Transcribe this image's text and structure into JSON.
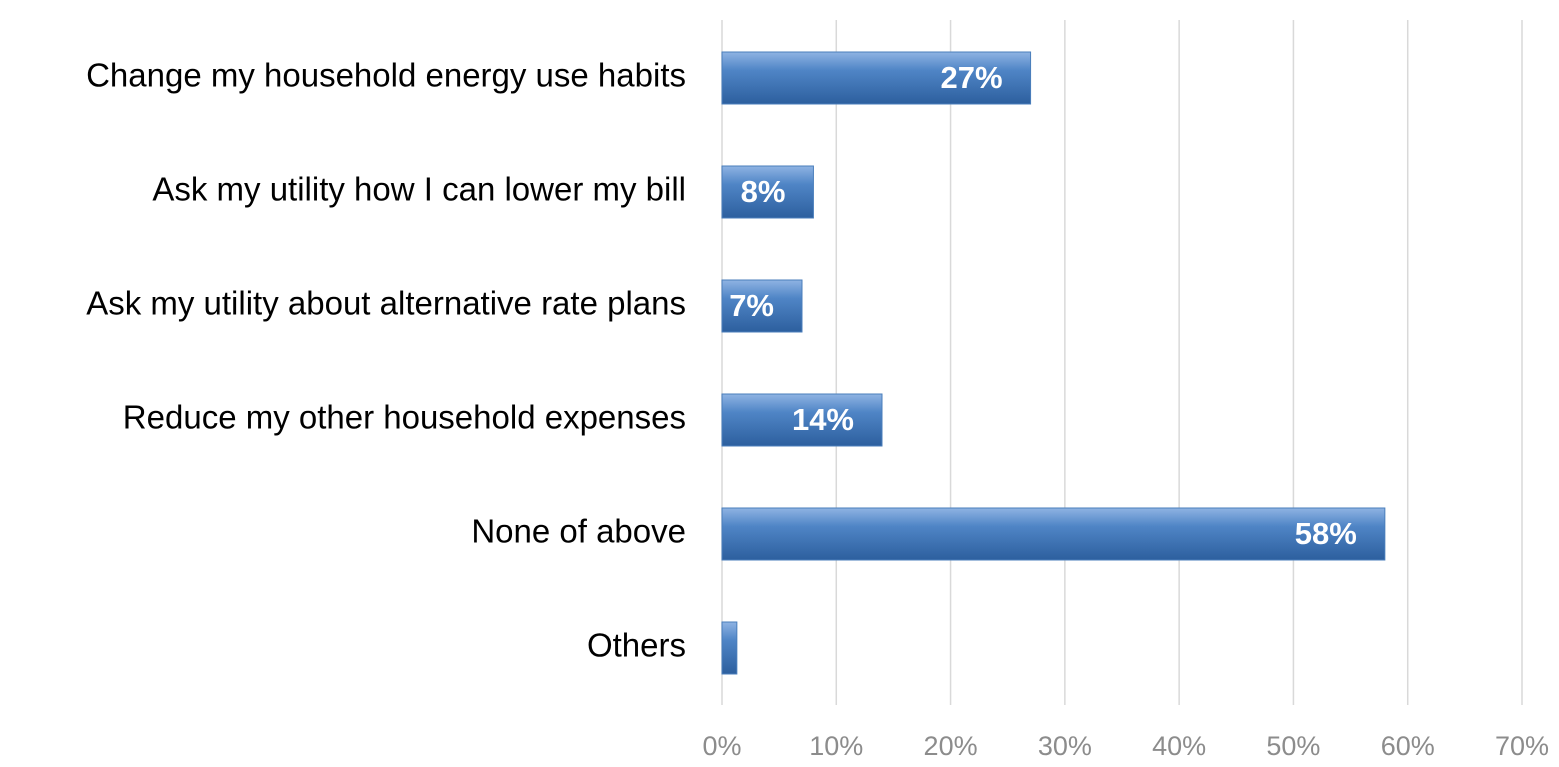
{
  "chart_data": {
    "type": "hbar",
    "categories": [
      "Change my household energy use habits",
      "Ask my utility how I can lower my bill",
      "Ask my utility about alternative rate plans",
      "Reduce my other household expenses",
      "None of above",
      "Others"
    ],
    "values": [
      27,
      8,
      7,
      14,
      58,
      1.3
    ],
    "value_labels": [
      "27%",
      "8%",
      "7%",
      "14%",
      "58%",
      null
    ],
    "color": "#4a7ebb",
    "xlim": [
      0,
      70
    ],
    "xticks": [
      {
        "value": 0,
        "label": "0%"
      },
      {
        "value": 10,
        "label": "10%"
      },
      {
        "value": 20,
        "label": "20%"
      },
      {
        "value": 30,
        "label": "30%"
      },
      {
        "value": 40,
        "label": "40%"
      },
      {
        "value": 50,
        "label": "50%"
      },
      {
        "value": 60,
        "label": "60%"
      },
      {
        "value": 70,
        "label": "70%"
      }
    ],
    "grid": true
  }
}
